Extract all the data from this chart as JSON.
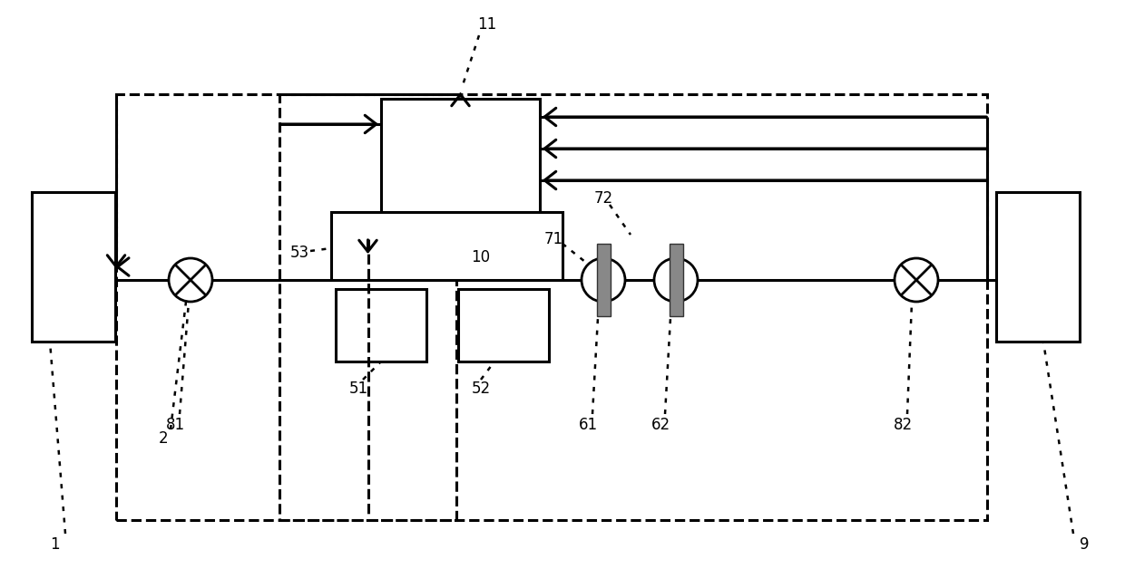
{
  "bg_color": "#ffffff",
  "line_color": "#000000",
  "gray_fill": "#888888",
  "fig_width": 12.4,
  "fig_height": 6.49,
  "lw": 2.0,
  "lw_thick": 2.2,
  "label_fs": 12
}
